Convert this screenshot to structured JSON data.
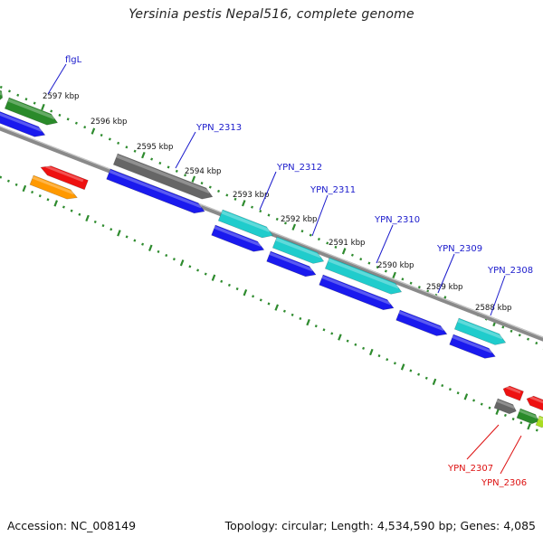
{
  "title": "Yersinia pestis Nepal516, complete genome",
  "footer": {
    "accession": "Accession: NC_008149",
    "topology": "Topology: circular; Length: 4,534,590 bp; Genes: 4,085"
  },
  "colors": {
    "backbone": "#8a8a8a",
    "tick": "#2e8b2e",
    "gene_label": "#1a1acc",
    "gene_label_reverse": "#dd1111",
    "cds_blue": "#1a1aee",
    "cds_cyan": "#20cccc",
    "gene_gray": "#666666",
    "gene_green": "#2a8a2a",
    "gene_red": "#ee1111",
    "gene_orange": "#ff9900"
  },
  "scale_labels": [
    "2597 kbp",
    "2596 kbp",
    "2595 kbp",
    "2594 kbp",
    "2593 kbp",
    "2592 kbp",
    "2591 kbp",
    "2590 kbp",
    "2589 kbp",
    "2588 kbp"
  ],
  "gene_labels": [
    {
      "text": "flgL",
      "strand": "forward"
    },
    {
      "text": "YPN_2313",
      "strand": "forward"
    },
    {
      "text": "YPN_2312",
      "strand": "forward"
    },
    {
      "text": "YPN_2311",
      "strand": "forward"
    },
    {
      "text": "YPN_2310",
      "strand": "forward"
    },
    {
      "text": "YPN_2309",
      "strand": "forward"
    },
    {
      "text": "YPN_2308",
      "strand": "forward"
    },
    {
      "text": "YPN_2307",
      "strand": "reverse"
    },
    {
      "text": "YPN_2306",
      "strand": "reverse"
    }
  ]
}
